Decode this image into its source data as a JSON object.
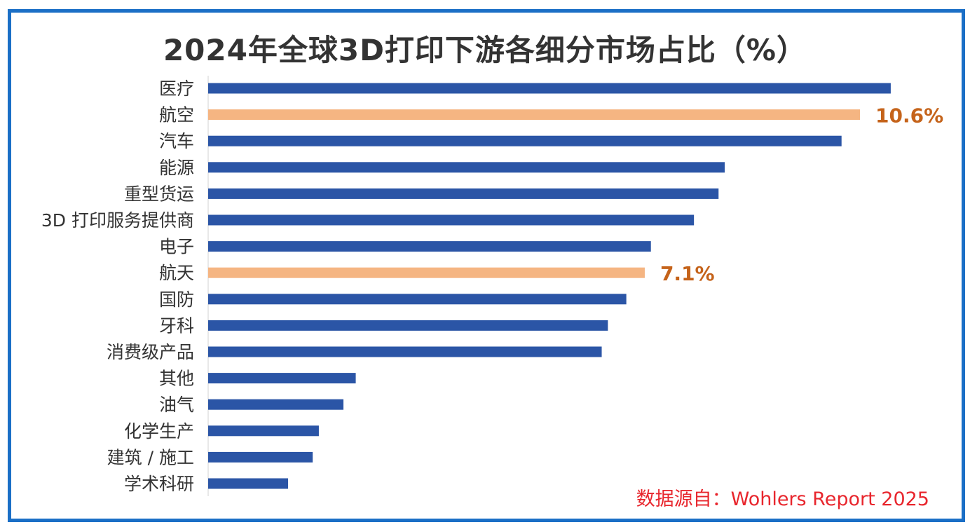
{
  "chart_data": {
    "type": "bar",
    "orientation": "horizontal",
    "title": "2024年全球3D打印下游各细分市场占比（%）",
    "categories": [
      "医疗",
      "航空",
      "汽车",
      "能源",
      "重型货运",
      "3D 打印服务提供商",
      "电子",
      "航天",
      "国防",
      "牙科",
      "消费级产品",
      "其他",
      "油气",
      "化学生产",
      "建筑 / 施工",
      "学术科研"
    ],
    "values": [
      11.1,
      10.6,
      10.3,
      8.4,
      8.3,
      7.9,
      7.2,
      7.1,
      6.8,
      6.5,
      6.4,
      2.4,
      2.2,
      1.8,
      1.7,
      1.3
    ],
    "highlighted": [
      false,
      true,
      false,
      false,
      false,
      false,
      false,
      true,
      false,
      false,
      false,
      false,
      false,
      false,
      false,
      false
    ],
    "data_labels": [
      "",
      "10.6%",
      "",
      "",
      "",
      "",
      "",
      "7.1%",
      "",
      "",
      "",
      "",
      "",
      "",
      "",
      ""
    ],
    "xlim": [
      0,
      11.5
    ],
    "grid": false,
    "colors": {
      "default": "#2b55a6",
      "highlight": "#f5b582",
      "label": "#c5631a"
    },
    "xlabel": "",
    "ylabel": ""
  },
  "source": "数据源自：Wohlers Report 2025"
}
